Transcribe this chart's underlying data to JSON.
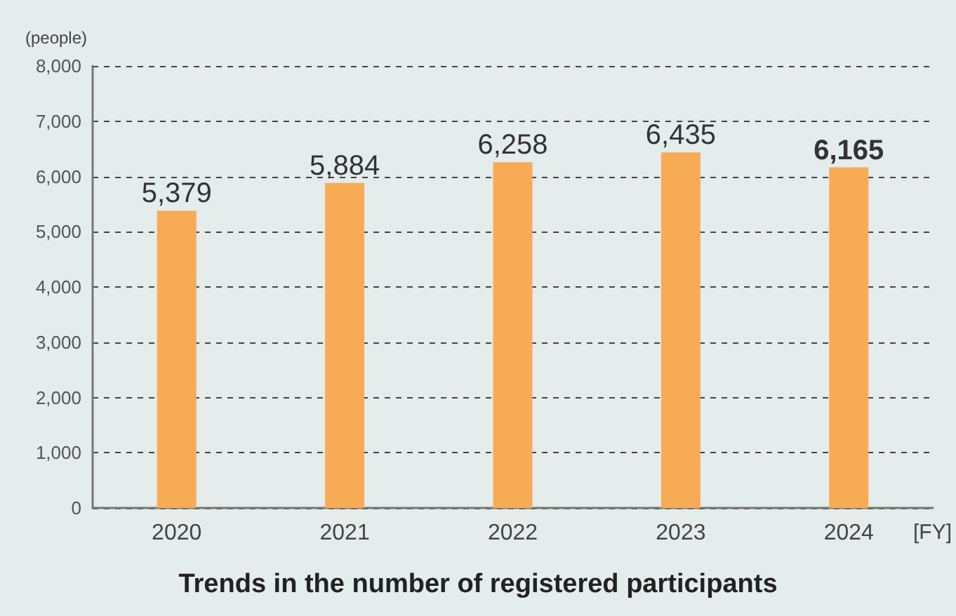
{
  "chart_data": {
    "type": "bar",
    "title": "Trends in the number of registered participants",
    "ylabel": "(people)",
    "xlabel": "[FY]",
    "categories": [
      "2020",
      "2021",
      "2022",
      "2023",
      "2024"
    ],
    "values": [
      5379,
      5884,
      6258,
      6435,
      6165
    ],
    "value_labels": [
      "5,379",
      "5,884",
      "6,258",
      "6,435",
      "6,165"
    ],
    "color": "#f8ab55",
    "ylim": [
      0,
      8000
    ],
    "yticks": [
      0,
      {
        "value": 1000,
        "label": "1,000"
      },
      {
        "value": 2000,
        "label": "2,000"
      },
      {
        "value": 3000,
        "label": "3,000"
      },
      {
        "value": 4000,
        "label": "4,000"
      },
      {
        "value": 5000,
        "label": "5,000"
      },
      {
        "value": 6000,
        "label": "6,000"
      },
      {
        "value": 7000,
        "label": "7,000"
      },
      {
        "value": 8000,
        "label": "8,000"
      }
    ],
    "grid": "y"
  }
}
